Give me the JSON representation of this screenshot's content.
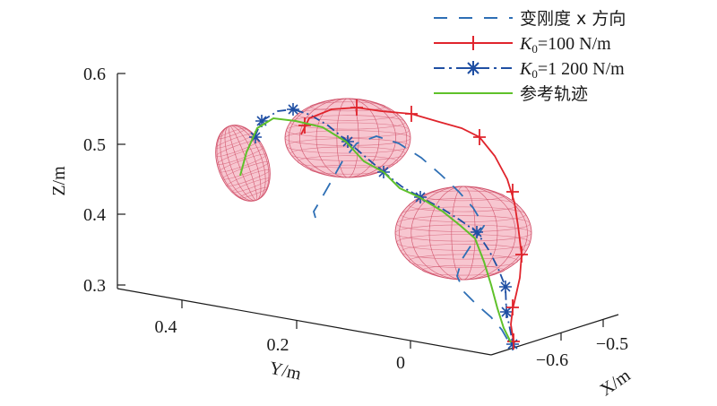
{
  "chart_data": {
    "type": "line",
    "projection": "3d",
    "axes": {
      "x": {
        "title": "X/m",
        "ticks": [
          "−0.6",
          "−0.5"
        ],
        "range": [
          -0.65,
          -0.45
        ]
      },
      "y": {
        "title": "Y/m",
        "ticks": [
          "0.4",
          "0.2",
          "0"
        ],
        "range": [
          -0.05,
          0.5
        ]
      },
      "z": {
        "title": "Z/m",
        "ticks": [
          "0.6",
          "0.5",
          "0.4",
          "0.3"
        ],
        "range": [
          0.29,
          0.6
        ]
      }
    },
    "legend": {
      "placement": "top-right",
      "entries": [
        {
          "label": "变刚度 x 方向",
          "style": "dashed",
          "color": "#2e6fb5",
          "marker": "none"
        },
        {
          "label_base": "K",
          "label_sub": "0",
          "label_rest": "=100 N/m",
          "style": "solid",
          "color": "#e0242c",
          "marker": "plus"
        },
        {
          "label_base": "K",
          "label_sub": "0",
          "label_rest": "=1 200 N/m",
          "style": "dashdot",
          "color": "#1f4fa3",
          "marker": "asterisk"
        },
        {
          "label": "参考轨迹",
          "style": "solid",
          "color": "#5fc12a",
          "marker": "none"
        }
      ]
    },
    "obstacles": [
      {
        "shape": "ellipsoid",
        "center_screen": "left-small",
        "color": "#f2a7b5"
      },
      {
        "shape": "ellipsoid",
        "center_screen": "top-middle",
        "color": "#f2a7b5"
      },
      {
        "shape": "ellipsoid",
        "center_screen": "right-large",
        "color": "#f2a7b5"
      }
    ],
    "colors": {
      "reference": "#5fc12a",
      "k100": "#e0242c",
      "k1200": "#1f4fa3",
      "variable": "#2e6fb5",
      "obstacle_fill": "#f4b3c0",
      "obstacle_mesh": "#d2556e"
    }
  }
}
